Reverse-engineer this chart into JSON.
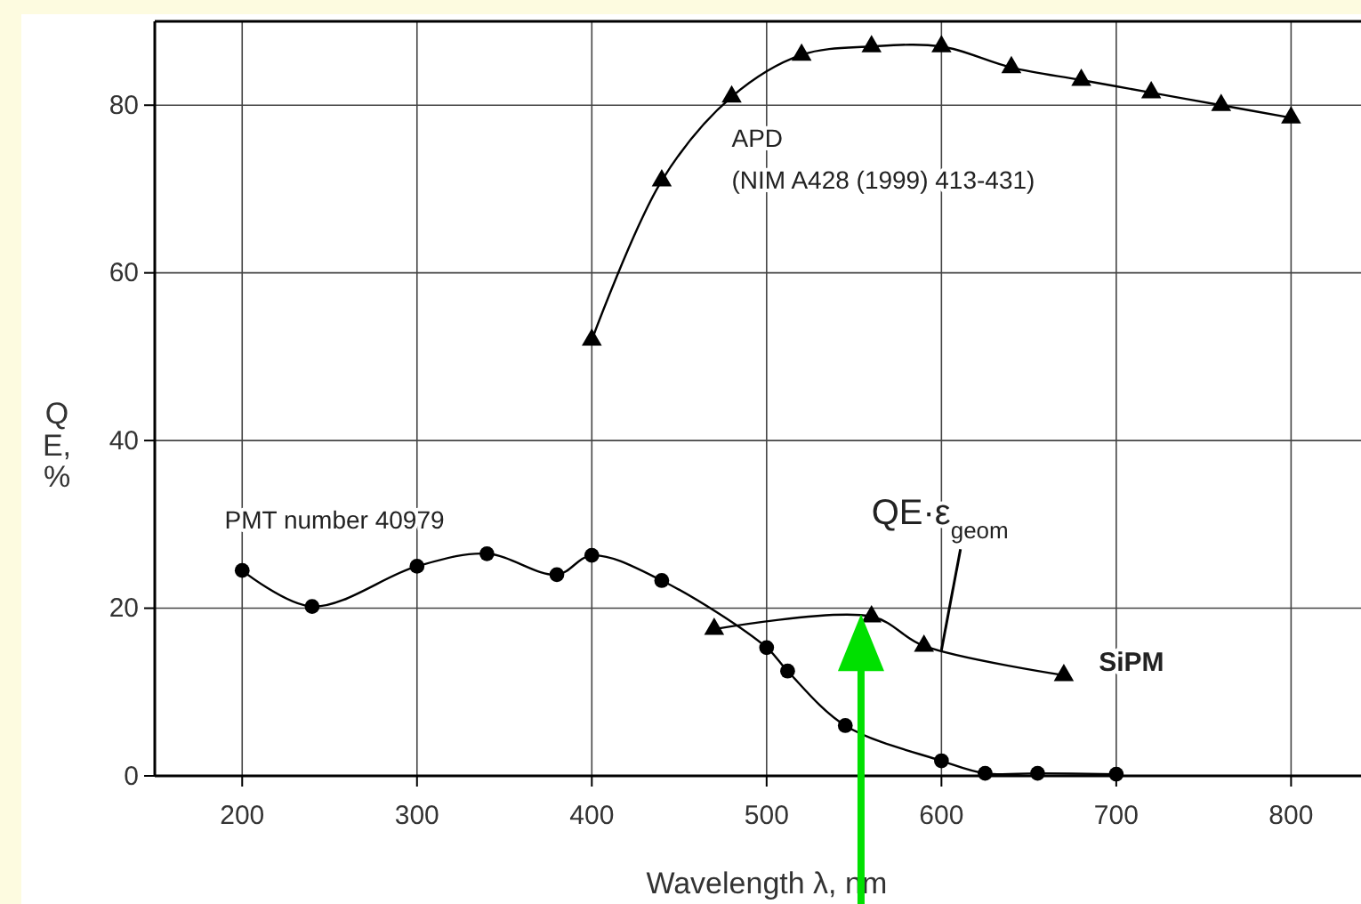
{
  "chart_data": {
    "type": "line",
    "xlabel": "Wavelength λ, nm",
    "ylabel": "QE, %",
    "xlim": [
      150,
      840
    ],
    "ylim": [
      0,
      90
    ],
    "xticks": [
      200,
      300,
      400,
      500,
      600,
      700,
      800
    ],
    "yticks": [
      0,
      20,
      40,
      60,
      80
    ],
    "grid": true,
    "series": [
      {
        "name": "APD",
        "color": "#000000",
        "marker": "triangle",
        "x": [
          400,
          440,
          480,
          520,
          560,
          600,
          640,
          680,
          720,
          760,
          800
        ],
        "values": [
          52,
          71,
          81,
          86,
          87,
          87,
          84.5,
          83,
          81.5,
          80,
          78.5
        ]
      },
      {
        "name": "PMT number 40979",
        "color": "#000000",
        "marker": "circle",
        "x": [
          200,
          240,
          300,
          340,
          380,
          400,
          440,
          500,
          512,
          545,
          600,
          625,
          655,
          700
        ],
        "values": [
          24.5,
          20.2,
          25,
          26.5,
          24,
          26.3,
          23.3,
          15.3,
          12.5,
          6,
          1.8,
          0.3,
          0.3,
          0.2
        ]
      },
      {
        "name": "SiPM",
        "color": "#000000",
        "marker": "triangle",
        "x": [
          470,
          560,
          590,
          670
        ],
        "values": [
          17.5,
          19,
          15.5,
          12
        ]
      }
    ],
    "annotations": [
      "(NIM A428 (1999) 413-431)",
      {
        "text": "QE·ε$_{geom}$",
        "x": 600,
        "y": 15
      }
    ]
  }
}
